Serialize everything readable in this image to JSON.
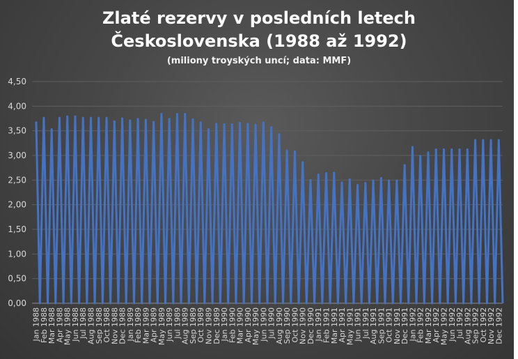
{
  "chart_data": {
    "type": "line",
    "title_line1": "Zlaté rezervy v posledních letech",
    "title_line2": "Československa (1988 až 1992)",
    "subtitle": "(miliony troyských uncí; data: MMF)",
    "ylim": [
      0,
      4.5
    ],
    "yticks": [
      "0,00",
      "0,50",
      "1,00",
      "1,50",
      "2,00",
      "2,50",
      "3,00",
      "3,50",
      "4,00",
      "4,50"
    ],
    "grid": true,
    "legend": "none",
    "line_color": "#4472c4",
    "categories": [
      "Jan 1988",
      "Feb 1988",
      "Mar 1988",
      "Apr 1988",
      "May 1988",
      "Jun 1988",
      "Jul 1988",
      "Aug 1988",
      "Sep 1988",
      "Oct 1988",
      "Nov 1988",
      "Dec 1988",
      "Jan 1989",
      "Feb 1989",
      "Mar 1989",
      "Apr 1989",
      "May 1989",
      "Jun 1989",
      "Jul 1989",
      "Aug 1989",
      "Sep 1989",
      "Oct 1989",
      "Nov 1989",
      "Dec 1989",
      "Jan 1990",
      "Feb 1990",
      "Mar 1990",
      "Apr 1990",
      "May 1990",
      "Jun 1990",
      "Jul 1990",
      "Aug 1990",
      "Sep 1990",
      "Oct 1990",
      "Nov 1990",
      "Dec 1990",
      "Jan 1991",
      "Feb 1991",
      "Mar 1991",
      "Apr 1991",
      "May 1991",
      "Jun 1991",
      "Jul 1991",
      "Aug 1991",
      "Sep 1991",
      "Oct 1991",
      "Nov 1991",
      "Dec 1991",
      "Jan 1992",
      "Feb 1992",
      "Mar 1992",
      "Apr 1992",
      "May 1992",
      "Jun 1992",
      "Jul 1992",
      "Aug 1992",
      "Sep 1992",
      "Oct 1992",
      "Nov 1992",
      "Dec 1992"
    ],
    "values": [
      3.67,
      3.76,
      3.53,
      3.76,
      3.79,
      3.79,
      3.76,
      3.76,
      3.76,
      3.76,
      3.69,
      3.75,
      3.71,
      3.74,
      3.72,
      3.68,
      3.84,
      3.74,
      3.84,
      3.84,
      3.73,
      3.67,
      3.53,
      3.64,
      3.63,
      3.63,
      3.66,
      3.64,
      3.62,
      3.67,
      3.57,
      3.43,
      3.1,
      3.08,
      2.86,
      2.5,
      2.61,
      2.64,
      2.65,
      2.45,
      2.51,
      2.4,
      2.44,
      2.49,
      2.54,
      2.49,
      2.49,
      2.8,
      3.17,
      2.99,
      3.06,
      3.12,
      3.12,
      3.12,
      3.12,
      3.12,
      3.31,
      3.31,
      3.31,
      3.31
    ]
  }
}
